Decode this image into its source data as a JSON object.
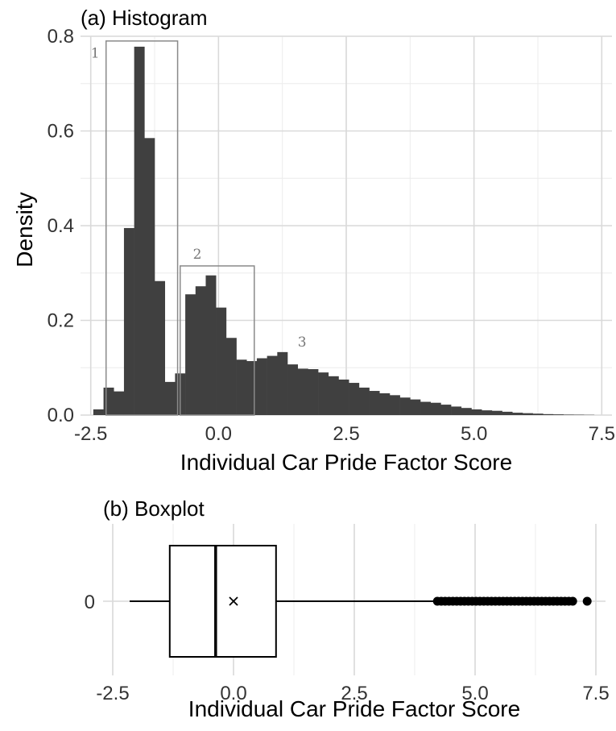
{
  "chart_data": [
    {
      "type": "bar",
      "subtype": "histogram",
      "title": "(a) Histogram",
      "xlabel": "Individual Car Pride Factor Score",
      "ylabel": "Density",
      "xlim": [
        -2.7,
        7.7
      ],
      "ylim": [
        0,
        0.8
      ],
      "xticks": [
        -2.5,
        0,
        2.5,
        5,
        7.5
      ],
      "xtick_labels": [
        "-2.5",
        "0.0",
        "2.5",
        "5.0",
        "7.5"
      ],
      "yticks": [
        0,
        0.2,
        0.4,
        0.6,
        0.8
      ],
      "ytick_labels": [
        "0.0",
        "0.2",
        "0.4",
        "0.6",
        "0.8"
      ],
      "bar_color": "#404040",
      "grid": true,
      "bins": [
        {
          "x0": -2.45,
          "x1": -2.25,
          "y": 0.012
        },
        {
          "x0": -2.25,
          "x1": -2.05,
          "y": 0.058
        },
        {
          "x0": -2.05,
          "x1": -1.85,
          "y": 0.05
        },
        {
          "x0": -1.85,
          "x1": -1.65,
          "y": 0.395
        },
        {
          "x0": -1.65,
          "x1": -1.45,
          "y": 0.778
        },
        {
          "x0": -1.45,
          "x1": -1.25,
          "y": 0.585
        },
        {
          "x0": -1.25,
          "x1": -1.05,
          "y": 0.283
        },
        {
          "x0": -1.05,
          "x1": -0.85,
          "y": 0.07
        },
        {
          "x0": -0.85,
          "x1": -0.65,
          "y": 0.088
        },
        {
          "x0": -0.65,
          "x1": -0.45,
          "y": 0.255
        },
        {
          "x0": -0.45,
          "x1": -0.25,
          "y": 0.272
        },
        {
          "x0": -0.25,
          "x1": -0.05,
          "y": 0.295
        },
        {
          "x0": -0.05,
          "x1": 0.15,
          "y": 0.227
        },
        {
          "x0": 0.15,
          "x1": 0.35,
          "y": 0.163
        },
        {
          "x0": 0.35,
          "x1": 0.55,
          "y": 0.117
        },
        {
          "x0": 0.55,
          "x1": 0.75,
          "y": 0.114
        },
        {
          "x0": 0.75,
          "x1": 0.95,
          "y": 0.12
        },
        {
          "x0": 0.95,
          "x1": 1.15,
          "y": 0.125
        },
        {
          "x0": 1.15,
          "x1": 1.35,
          "y": 0.133
        },
        {
          "x0": 1.35,
          "x1": 1.55,
          "y": 0.107
        },
        {
          "x0": 1.55,
          "x1": 1.75,
          "y": 0.098
        },
        {
          "x0": 1.75,
          "x1": 1.95,
          "y": 0.097
        },
        {
          "x0": 1.95,
          "x1": 2.15,
          "y": 0.09
        },
        {
          "x0": 2.15,
          "x1": 2.35,
          "y": 0.082
        },
        {
          "x0": 2.35,
          "x1": 2.55,
          "y": 0.075
        },
        {
          "x0": 2.55,
          "x1": 2.75,
          "y": 0.068
        },
        {
          "x0": 2.75,
          "x1": 2.95,
          "y": 0.058
        },
        {
          "x0": 2.95,
          "x1": 3.15,
          "y": 0.051
        },
        {
          "x0": 3.15,
          "x1": 3.35,
          "y": 0.046
        },
        {
          "x0": 3.35,
          "x1": 3.55,
          "y": 0.042
        },
        {
          "x0": 3.55,
          "x1": 3.75,
          "y": 0.037
        },
        {
          "x0": 3.75,
          "x1": 3.95,
          "y": 0.033
        },
        {
          "x0": 3.95,
          "x1": 4.15,
          "y": 0.028
        },
        {
          "x0": 4.15,
          "x1": 4.35,
          "y": 0.026
        },
        {
          "x0": 4.35,
          "x1": 4.55,
          "y": 0.022
        },
        {
          "x0": 4.55,
          "x1": 4.75,
          "y": 0.018
        },
        {
          "x0": 4.75,
          "x1": 4.95,
          "y": 0.015
        },
        {
          "x0": 4.95,
          "x1": 5.15,
          "y": 0.012
        },
        {
          "x0": 5.15,
          "x1": 5.35,
          "y": 0.01
        },
        {
          "x0": 5.35,
          "x1": 5.55,
          "y": 0.009
        },
        {
          "x0": 5.55,
          "x1": 5.75,
          "y": 0.007
        },
        {
          "x0": 5.75,
          "x1": 5.95,
          "y": 0.005
        },
        {
          "x0": 5.95,
          "x1": 6.15,
          "y": 0.004
        },
        {
          "x0": 6.15,
          "x1": 6.35,
          "y": 0.003
        },
        {
          "x0": 6.35,
          "x1": 6.55,
          "y": 0.002
        },
        {
          "x0": 6.55,
          "x1": 6.75,
          "y": 0.0015
        },
        {
          "x0": 6.75,
          "x1": 6.95,
          "y": 0.001
        },
        {
          "x0": 6.95,
          "x1": 7.15,
          "y": 0.0008
        },
        {
          "x0": 7.15,
          "x1": 7.35,
          "y": 0.0005
        }
      ],
      "annotations": [
        {
          "label": "1",
          "x0": -2.2,
          "x1": -0.8,
          "y0": 0,
          "y1": 0.79,
          "label_x": -2.5,
          "label_y": 0.755
        },
        {
          "label": "2",
          "x0": -0.75,
          "x1": 0.7,
          "y0": 0,
          "y1": 0.315,
          "label_x": -0.5,
          "label_y": 0.33
        },
        {
          "label": "3",
          "x0": null,
          "x1": null,
          "y0": null,
          "y1": null,
          "label_x": 1.55,
          "label_y": 0.145
        }
      ]
    },
    {
      "type": "boxplot",
      "title": "(b) Boxplot",
      "xlabel": "Individual Car Pride Factor Score",
      "ylabel": "",
      "category": "0",
      "xlim": [
        -2.7,
        7.7
      ],
      "xticks": [
        -2.5,
        0,
        2.5,
        5,
        7.5
      ],
      "xtick_labels": [
        "-2.5",
        "0.0",
        "2.5",
        "5.0",
        "7.5"
      ],
      "whisker_low": -2.15,
      "q1": -1.32,
      "median": -0.37,
      "mean": 0.0,
      "q3": 0.88,
      "whisker_high": 4.2,
      "outliers": [
        4.22,
        4.3,
        4.38,
        4.46,
        4.54,
        4.62,
        4.7,
        4.78,
        4.86,
        4.94,
        5.02,
        5.1,
        5.18,
        5.26,
        5.34,
        5.42,
        5.5,
        5.58,
        5.66,
        5.74,
        5.82,
        5.9,
        5.98,
        6.06,
        6.14,
        6.22,
        6.3,
        6.38,
        6.46,
        6.54,
        6.62,
        6.7,
        6.78,
        6.86,
        6.94,
        7.02,
        7.32
      ]
    }
  ]
}
